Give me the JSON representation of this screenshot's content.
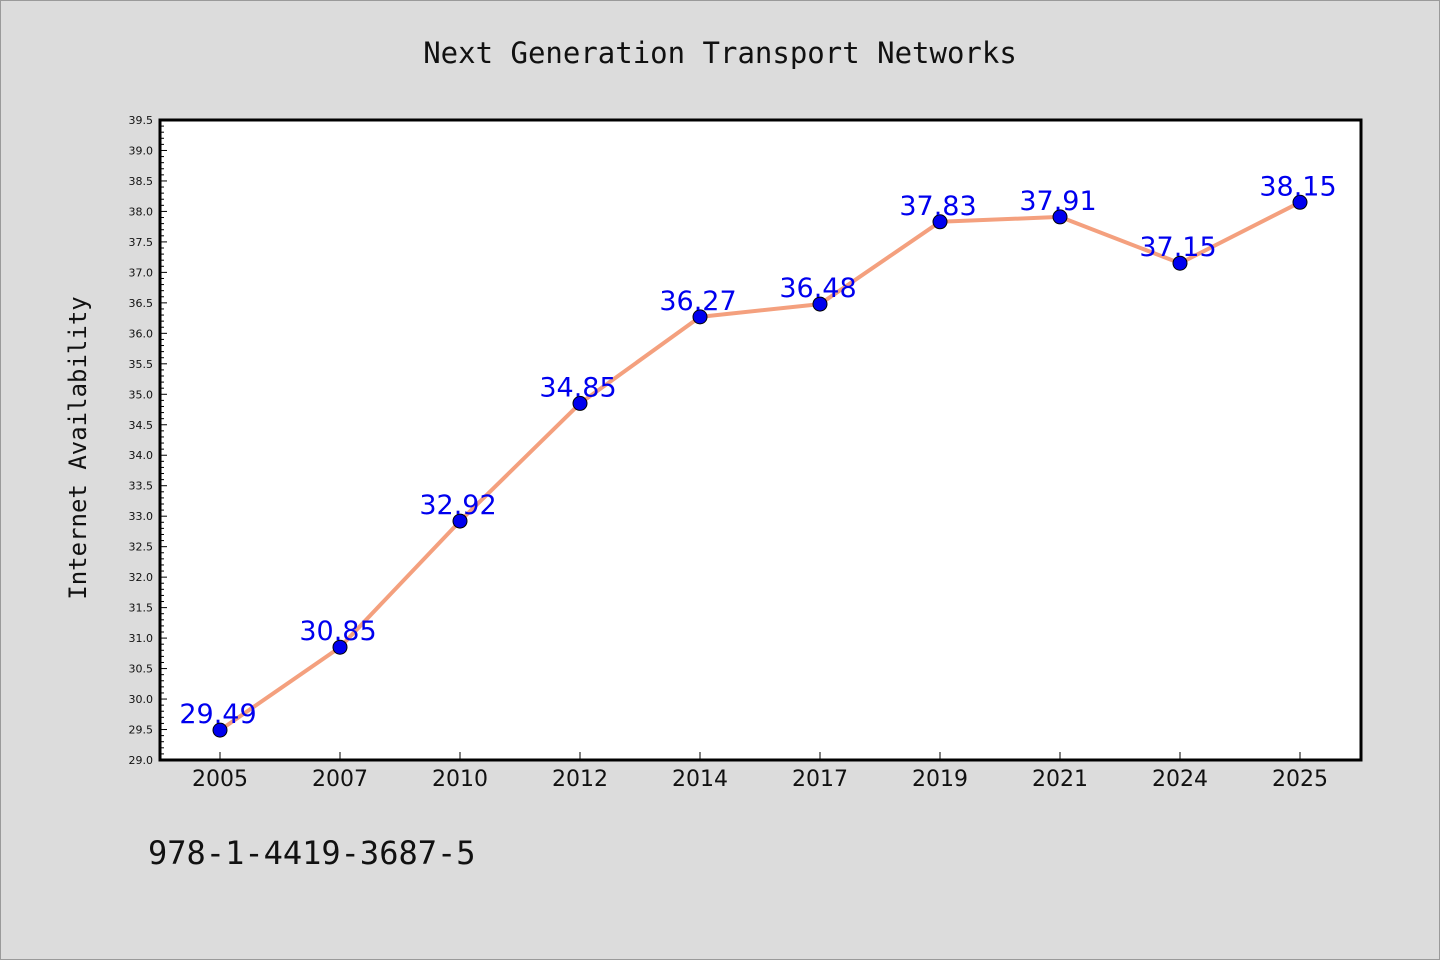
{
  "chart_data": {
    "type": "line",
    "title": "Next Generation Transport Networks",
    "xlabel": "",
    "ylabel": "Internet Availability",
    "categories": [
      "2005",
      "2007",
      "2010",
      "2012",
      "2014",
      "2017",
      "2019",
      "2021",
      "2024",
      "2025"
    ],
    "series": [
      {
        "values": [
          29.49,
          30.85,
          32.92,
          34.85,
          36.27,
          36.48,
          37.83,
          37.91,
          37.15,
          38.15
        ],
        "labels": [
          "29.49",
          "30.85",
          "32.92",
          "34.85",
          "36.27",
          "36.48",
          "37.83",
          "37.91",
          "37.15",
          "38.15"
        ],
        "line_color": "#f4a07e",
        "marker_color": "#0000ee",
        "label_color": "#0000ee"
      }
    ],
    "ylim": [
      29.0,
      39.5
    ],
    "yticks": [
      "29.0",
      "29.5",
      "30.0",
      "30.5",
      "31.0",
      "31.5",
      "32.0",
      "32.5",
      "33.0",
      "33.5",
      "34.0",
      "34.5",
      "35.0",
      "35.5",
      "36.0",
      "36.5",
      "37.0",
      "37.5",
      "38.0",
      "38.5",
      "39.0",
      "39.5"
    ],
    "grid": false,
    "legend": "none"
  },
  "footer": {
    "isbn": "978-1-4419-3687-5"
  },
  "colors": {
    "background": "#dcdcdc",
    "plot_background": "#ffffff",
    "axis": "#000000"
  }
}
